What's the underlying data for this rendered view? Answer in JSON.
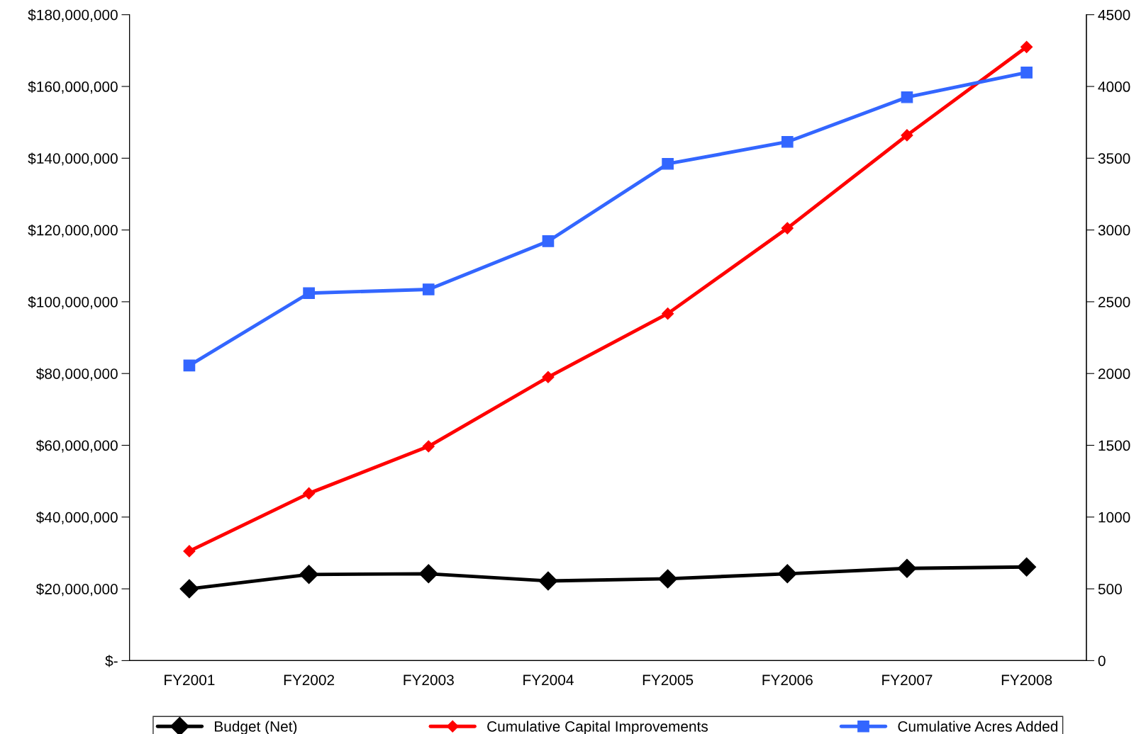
{
  "chart_data": {
    "type": "line",
    "categories": [
      "FY2001",
      "FY2002",
      "FY2003",
      "FY2004",
      "FY2005",
      "FY2006",
      "FY2007",
      "FY2008"
    ],
    "series": [
      {
        "name": "Budget (Net)",
        "color": "#000000",
        "marker": "diamond",
        "values": [
          20000000,
          24000000,
          24200000,
          22200000,
          22800000,
          24200000,
          25700000,
          26100000
        ]
      },
      {
        "name": "Cumulative Capital Improvements",
        "color": "#ff0000",
        "marker": "diamond",
        "values": [
          30500000,
          46600000,
          59700000,
          79000000,
          96700000,
          120500000,
          146400000,
          171000000
        ]
      },
      {
        "name": "Cumulative Acres Added",
        "color": "#3366ff",
        "marker": "square",
        "axis": "y2",
        "values": [
          2056,
          2560,
          2586,
          2922,
          3461,
          3614,
          3925,
          4097
        ]
      }
    ],
    "ylim": [
      0,
      180000000
    ],
    "yticks": [
      {
        "value": 0,
        "label": "$-"
      },
      {
        "value": 20000000,
        "label": "$20,000,000"
      },
      {
        "value": 40000000,
        "label": "$40,000,000"
      },
      {
        "value": 60000000,
        "label": "$60,000,000"
      },
      {
        "value": 80000000,
        "label": "$80,000,000"
      },
      {
        "value": 100000000,
        "label": "$100,000,000"
      },
      {
        "value": 120000000,
        "label": "$120,000,000"
      },
      {
        "value": 140000000,
        "label": "$140,000,000"
      },
      {
        "value": 160000000,
        "label": "$160,000,000"
      },
      {
        "value": 180000000,
        "label": "$180,000,000"
      }
    ],
    "y2lim": [
      0,
      4500
    ],
    "y2ticks": [
      0,
      500,
      1000,
      1500,
      2000,
      2500,
      3000,
      3500,
      4000,
      4500
    ],
    "grid": false,
    "legend": "bottom",
    "line_style": "solid"
  }
}
